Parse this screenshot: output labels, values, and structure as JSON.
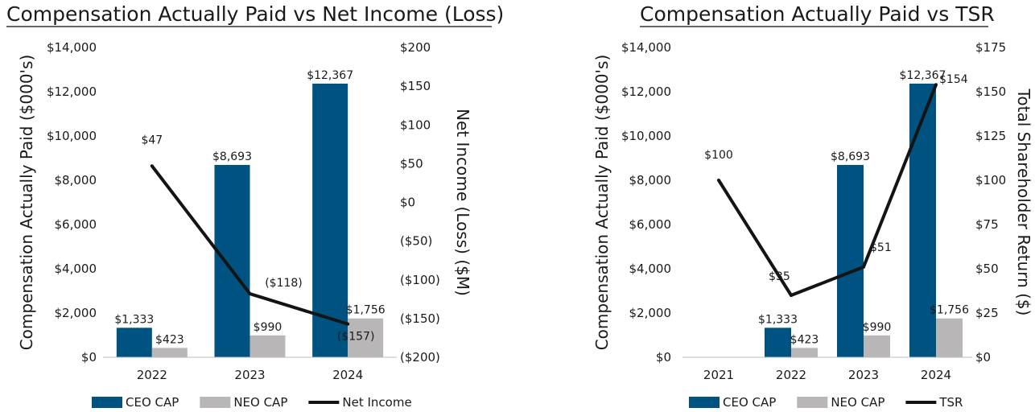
{
  "colors": {
    "ceo": "#005380",
    "neo": "#b8b6b6",
    "line": "#141414",
    "text": "#1a1a1a"
  },
  "chart_data": [
    {
      "type": "bar",
      "title": "Compensation Actually Paid vs Net Income (Loss)",
      "categories": [
        "2022",
        "2023",
        "2024"
      ],
      "ylabel": "Compensation Actually Paid ($000's)",
      "ylim": [
        0,
        14000
      ],
      "yticks": [
        0,
        2000,
        4000,
        6000,
        8000,
        10000,
        12000,
        14000
      ],
      "ytick_labels": [
        "$0",
        "$2,000",
        "$4,000",
        "$6,000",
        "$8,000",
        "$10,000",
        "$12,000",
        "$14,000"
      ],
      "y2label": "Net Income (Loss) ($M)",
      "y2lim": [
        -200,
        200
      ],
      "y2ticks": [
        -200,
        -150,
        -100,
        -50,
        0,
        50,
        100,
        150,
        200
      ],
      "y2tick_labels": [
        "($200)",
        "($150)",
        "($100)",
        "($50)",
        "$0",
        "$50",
        "$100",
        "$150",
        "$200"
      ],
      "series": [
        {
          "name": "CEO CAP",
          "kind": "bar",
          "values": [
            1333,
            8693,
            12367
          ],
          "labels": [
            "$1,333",
            "$8,693",
            "$12,367"
          ]
        },
        {
          "name": "NEO CAP",
          "kind": "bar",
          "values": [
            423,
            990,
            1756
          ],
          "labels": [
            "$423",
            "$990",
            "$1,756"
          ]
        },
        {
          "name": "Net Income",
          "kind": "line",
          "axis": "right",
          "values": [
            47,
            -118,
            -157
          ],
          "labels": [
            "$47",
            "($118)",
            "($157)"
          ]
        }
      ],
      "grid": false,
      "legend": "bottom"
    },
    {
      "type": "bar",
      "title": "Compensation Actually Paid vs TSR",
      "categories": [
        "2021",
        "2022",
        "2023",
        "2024"
      ],
      "ylabel": "Compensation Actually Paid ($000's)",
      "ylim": [
        0,
        14000
      ],
      "yticks": [
        0,
        2000,
        4000,
        6000,
        8000,
        10000,
        12000,
        14000
      ],
      "ytick_labels": [
        "$0",
        "$2,000",
        "$4,000",
        "$6,000",
        "$8,000",
        "$10,000",
        "$12,000",
        "$14,000"
      ],
      "y2label": "Total Shareholder Return ($)",
      "y2lim": [
        0,
        175
      ],
      "y2ticks": [
        0,
        25,
        50,
        75,
        100,
        125,
        150,
        175
      ],
      "y2tick_labels": [
        "$0",
        "$25",
        "$50",
        "$75",
        "$100",
        "$125",
        "$150",
        "$175"
      ],
      "series": [
        {
          "name": "CEO CAP",
          "kind": "bar",
          "values": [
            null,
            1333,
            8693,
            12367
          ],
          "labels": [
            null,
            "$1,333",
            "$8,693",
            "$12,367"
          ]
        },
        {
          "name": "NEO CAP",
          "kind": "bar",
          "values": [
            null,
            423,
            990,
            1756
          ],
          "labels": [
            null,
            "$423",
            "$990",
            "$1,756"
          ]
        },
        {
          "name": "TSR",
          "kind": "line",
          "axis": "right",
          "values": [
            100,
            35,
            51,
            154
          ],
          "labels": [
            "$100",
            "$35",
            "$51",
            "$154"
          ]
        }
      ],
      "grid": false,
      "legend": "bottom"
    }
  ]
}
